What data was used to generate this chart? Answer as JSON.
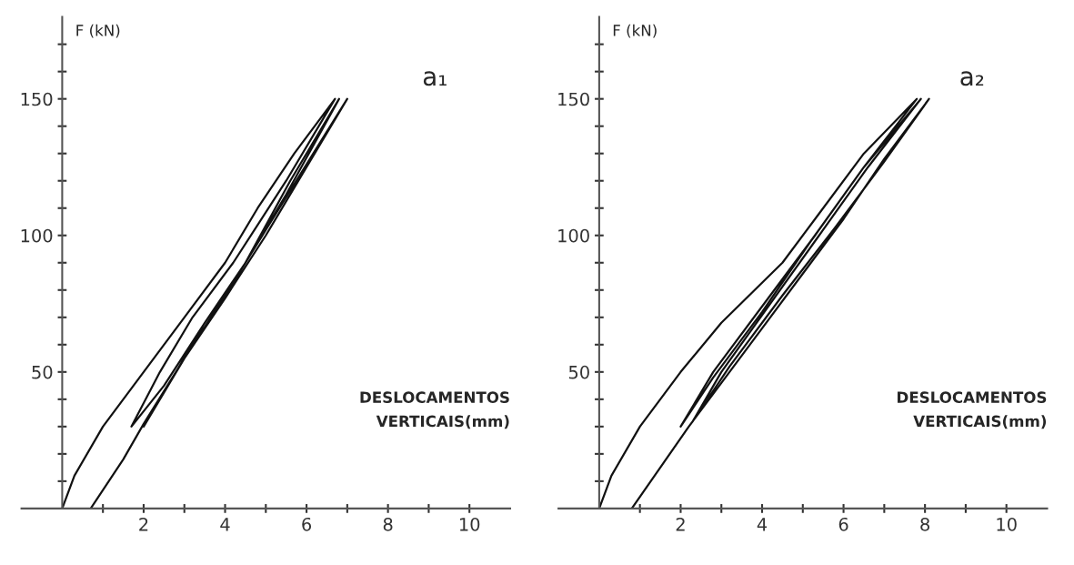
{
  "chart_data": [
    {
      "type": "line",
      "title": "a₁",
      "xlabel": "DESLOCAMENTOS\nVERTICAIS(mm)",
      "ylabel": "F (kN)",
      "xlim": [
        -1,
        11
      ],
      "ylim": [
        0,
        180
      ],
      "xticks": [
        {
          "value": 1,
          "label": null
        },
        2,
        {
          "value": 3,
          "label": null
        },
        4,
        {
          "value": 5,
          "label": null
        },
        6,
        {
          "value": 7,
          "label": null
        },
        8,
        {
          "value": 9,
          "label": null
        },
        10
      ],
      "yticks": [
        {
          "value": 10,
          "label": null
        },
        {
          "value": 20,
          "label": null
        },
        {
          "value": 30,
          "label": null
        },
        {
          "value": 40,
          "label": null
        },
        50,
        {
          "value": 60,
          "label": null
        },
        {
          "value": 70,
          "label": null
        },
        {
          "value": 80,
          "label": null
        },
        {
          "value": 90,
          "label": null
        },
        100,
        {
          "value": 110,
          "label": null
        },
        {
          "value": 120,
          "label": null
        },
        {
          "value": 130,
          "label": null
        },
        {
          "value": 140,
          "label": null
        },
        150,
        {
          "value": 160,
          "label": null
        },
        {
          "value": 170,
          "label": null
        }
      ],
      "grid": false,
      "legend": false,
      "marker": "none",
      "line_style": "solid",
      "series": [
        {
          "color": "#111111",
          "x": [
            0,
            0.3,
            1,
            2,
            3,
            4,
            4.8,
            5.7,
            6.7,
            5.5,
            4.2,
            3.2,
            2.4,
            1.7,
            2.5,
            3.5,
            4.5,
            5.5,
            6.8,
            5.6,
            4.5,
            3.5,
            2.6,
            2.0,
            3,
            4,
            5,
            6,
            7.0,
            6,
            5,
            4,
            3,
            2,
            1.5,
            0.7
          ],
          "values": [
            0,
            12,
            30,
            50,
            70,
            90,
            110,
            130,
            150,
            120,
            90,
            70,
            50,
            30,
            45,
            68,
            90,
            115,
            150,
            120,
            90,
            68,
            45,
            30,
            55,
            77,
            100,
            125,
            150,
            126,
            102,
            78,
            55,
            31,
            18,
            0
          ]
        }
      ]
    },
    {
      "type": "line",
      "title": "a₂",
      "xlabel": "DESLOCAMENTOS\nVERTICAIS(mm)",
      "ylabel": "F (kN)",
      "xlim": [
        -1,
        11
      ],
      "ylim": [
        0,
        180
      ],
      "xticks": [
        {
          "value": 1,
          "label": null
        },
        2,
        {
          "value": 3,
          "label": null
        },
        4,
        {
          "value": 5,
          "label": null
        },
        6,
        {
          "value": 7,
          "label": null
        },
        8,
        {
          "value": 9,
          "label": null
        },
        10
      ],
      "yticks": [
        {
          "value": 10,
          "label": null
        },
        {
          "value": 20,
          "label": null
        },
        {
          "value": 30,
          "label": null
        },
        {
          "value": 40,
          "label": null
        },
        50,
        {
          "value": 60,
          "label": null
        },
        {
          "value": 70,
          "label": null
        },
        {
          "value": 80,
          "label": null
        },
        {
          "value": 90,
          "label": null
        },
        100,
        {
          "value": 110,
          "label": null
        },
        {
          "value": 120,
          "label": null
        },
        {
          "value": 130,
          "label": null
        },
        {
          "value": 140,
          "label": null
        },
        150,
        {
          "value": 160,
          "label": null
        },
        {
          "value": 170,
          "label": null
        }
      ],
      "grid": false,
      "legend": false,
      "marker": "none",
      "line_style": "solid",
      "series": [
        {
          "color": "#111111",
          "x": [
            0,
            0.3,
            1,
            2,
            3,
            4.5,
            5.4,
            6.5,
            7.8,
            6.5,
            5.3,
            4.2,
            2.8,
            2.0,
            2.8,
            4,
            5.2,
            6.5,
            7.9,
            6.6,
            5.4,
            4.2,
            3,
            2.3,
            3.2,
            4.5,
            5.8,
            7,
            8.1,
            7,
            6,
            5,
            4,
            3,
            2.2,
            0.8
          ],
          "values": [
            0,
            12,
            30,
            50,
            68,
            90,
            108,
            130,
            150,
            125,
            100,
            78,
            50,
            30,
            48,
            72,
            98,
            125,
            150,
            125,
            100,
            75,
            50,
            32,
            52,
            78,
            103,
            127,
            150,
            128,
            106,
            86,
            66,
            46,
            30,
            0
          ]
        }
      ]
    }
  ]
}
